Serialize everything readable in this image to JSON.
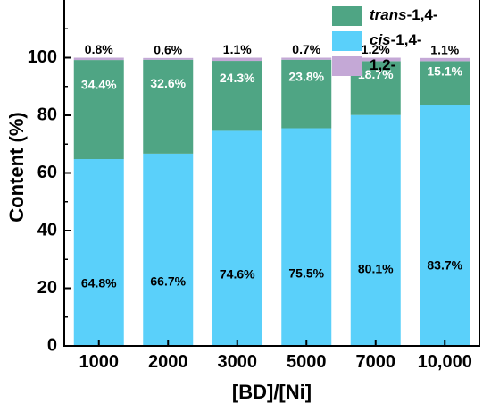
{
  "chart_data": {
    "type": "bar",
    "stacked": true,
    "xlabel": "[BD]/[Ni]",
    "ylabel": "Content (%)",
    "ylim": [
      0,
      120
    ],
    "yticks": [
      0,
      20,
      40,
      60,
      80,
      100
    ],
    "categories": [
      "1000",
      "2000",
      "3000",
      "5000",
      "7000",
      "10,000"
    ],
    "series": [
      {
        "name_parts": [
          "cis",
          "-1,4-"
        ],
        "color": "#5ad0fa",
        "label_color": "#000000",
        "values": [
          64.8,
          66.7,
          74.6,
          75.5,
          80.1,
          83.7
        ],
        "labels": [
          "64.8%",
          "66.7%",
          "74.6%",
          "75.5%",
          "80.1%",
          "83.7%"
        ]
      },
      {
        "name_parts": [
          "trans",
          "-1,4-"
        ],
        "color": "#4fa584",
        "label_color": "#ffffff",
        "values": [
          34.4,
          32.6,
          24.3,
          23.8,
          18.7,
          15.1
        ],
        "labels": [
          "34.4%",
          "32.6%",
          "24.3%",
          "23.8%",
          "18.7%",
          "15.1%"
        ]
      },
      {
        "name_parts": [
          "",
          "1,2-"
        ],
        "color": "#c4a8d6",
        "label_color": "#000000",
        "values": [
          0.8,
          0.6,
          1.1,
          0.7,
          1.2,
          1.1
        ],
        "labels": [
          "0.8%",
          "0.6%",
          "1.1%",
          "0.7%",
          "1.2%",
          "1.1%"
        ]
      }
    ],
    "legend_order": [
      1,
      0,
      2
    ],
    "legend_position": "top-right",
    "grid": false
  }
}
